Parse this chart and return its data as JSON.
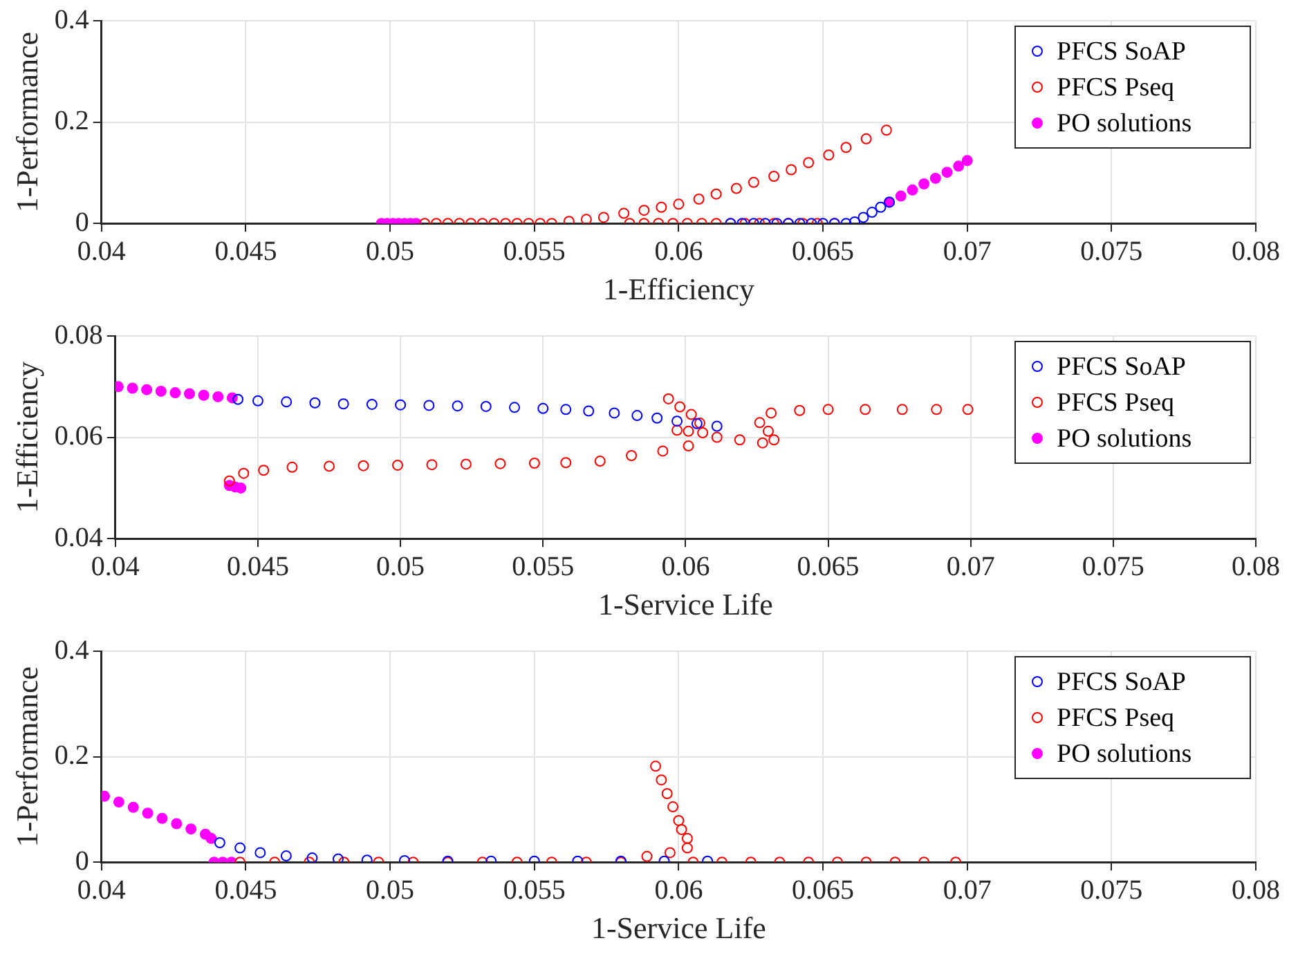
{
  "chart_data": [
    {
      "type": "scatter",
      "xlabel": "1-Efficiency",
      "ylabel": "1-Performance",
      "xlim": [
        0.04,
        0.08
      ],
      "xticks": [
        0.04,
        0.045,
        0.05,
        0.055,
        0.06,
        0.065,
        0.07,
        0.075,
        0.08
      ],
      "ylim": [
        0,
        0.4
      ],
      "yticks": [
        0,
        0.2,
        0.4
      ],
      "grid": true,
      "legend": "top right",
      "marker": "circle",
      "series": [
        {
          "name": "PFCS SoAP",
          "color": "#0000ff",
          "x": [
            0.0618,
            0.0622,
            0.0626,
            0.063,
            0.0634,
            0.0638,
            0.0642,
            0.0646,
            0.065,
            0.0654,
            0.0658,
            0.0661,
            0.0664,
            0.0667,
            0.067,
            0.0673
          ],
          "values": [
            0,
            0,
            0,
            0,
            0,
            0,
            0,
            0,
            0,
            0,
            0,
            0.003,
            0.012,
            0.022,
            0.032,
            0.042
          ]
        },
        {
          "name": "PFCS Pseq",
          "color": "#ff0000",
          "x": [
            0.0512,
            0.0516,
            0.052,
            0.0524,
            0.0528,
            0.0532,
            0.0536,
            0.054,
            0.0544,
            0.0548,
            0.0552,
            0.0556,
            0.0562,
            0.0568,
            0.0574,
            0.0581,
            0.0588,
            0.0594,
            0.06,
            0.0607,
            0.0613,
            0.062,
            0.0626,
            0.0633,
            0.0639,
            0.0645,
            0.0652,
            0.0658,
            0.0665,
            0.0672,
            0.0583,
            0.0588,
            0.0593,
            0.0598,
            0.0603,
            0.0608,
            0.0613,
            0.0618,
            0.0623,
            0.0628,
            0.0633,
            0.0638,
            0.0643,
            0.0648,
            0.0654
          ],
          "values": [
            0,
            0,
            0,
            0,
            0,
            0,
            0,
            0,
            0,
            0,
            0,
            0,
            0.004,
            0.008,
            0.012,
            0.02,
            0.026,
            0.032,
            0.038,
            0.048,
            0.058,
            0.069,
            0.081,
            0.093,
            0.106,
            0.12,
            0.135,
            0.15,
            0.167,
            0.184,
            0,
            0,
            0,
            0,
            0,
            0,
            0,
            0,
            0,
            0,
            0,
            0,
            0,
            0,
            0
          ]
        },
        {
          "name": "PO solutions",
          "color": "#ff00ff",
          "x": [
            0.0497,
            0.0499,
            0.0501,
            0.0503,
            0.0505,
            0.0507,
            0.0509,
            0.0673,
            0.0677,
            0.0681,
            0.0685,
            0.0689,
            0.0693,
            0.0697,
            0.07
          ],
          "values": [
            0,
            0,
            0,
            0,
            0,
            0,
            0,
            0.042,
            0.054,
            0.066,
            0.078,
            0.089,
            0.101,
            0.113,
            0.124
          ]
        }
      ]
    },
    {
      "type": "scatter",
      "xlabel": "1-Service Life",
      "ylabel": "1-Efficiency",
      "xlim": [
        0.04,
        0.08
      ],
      "xticks": [
        0.04,
        0.045,
        0.05,
        0.055,
        0.06,
        0.065,
        0.07,
        0.075,
        0.08
      ],
      "ylim": [
        0.04,
        0.08
      ],
      "yticks": [
        0.04,
        0.06,
        0.08
      ],
      "grid": true,
      "legend": "top right",
      "marker": "circle",
      "series": [
        {
          "name": "PFCS SoAP",
          "color": "#0000ff",
          "x": [
            0.0443,
            0.045,
            0.046,
            0.047,
            0.048,
            0.049,
            0.05,
            0.051,
            0.052,
            0.053,
            0.054,
            0.055,
            0.0558,
            0.0566,
            0.0575,
            0.0583,
            0.059,
            0.0597,
            0.0604,
            0.0611
          ],
          "values": [
            0.0675,
            0.0672,
            0.067,
            0.0668,
            0.0666,
            0.0665,
            0.0664,
            0.0663,
            0.0662,
            0.0661,
            0.0659,
            0.0657,
            0.0655,
            0.0652,
            0.0648,
            0.0643,
            0.0638,
            0.0632,
            0.0627,
            0.0622
          ]
        },
        {
          "name": "PFCS Pseq",
          "color": "#ff0000",
          "x": [
            0.044,
            0.0445,
            0.0452,
            0.0462,
            0.0475,
            0.0487,
            0.0499,
            0.0511,
            0.0523,
            0.0535,
            0.0547,
            0.0558,
            0.057,
            0.0581,
            0.0592,
            0.0601,
            0.0606,
            0.0594,
            0.0598,
            0.0602,
            0.0605,
            0.0597,
            0.0601,
            0.0611,
            0.0619,
            0.0627,
            0.0631,
            0.0629,
            0.0626,
            0.063,
            0.064,
            0.065,
            0.0663,
            0.0676,
            0.0688,
            0.0699
          ],
          "values": [
            0.0514,
            0.0529,
            0.0535,
            0.0541,
            0.0543,
            0.0544,
            0.0545,
            0.0546,
            0.0547,
            0.0548,
            0.0549,
            0.055,
            0.0553,
            0.0564,
            0.0573,
            0.0583,
            0.0609,
            0.0676,
            0.066,
            0.0645,
            0.0628,
            0.0614,
            0.0612,
            0.06,
            0.0595,
            0.0589,
            0.0595,
            0.0612,
            0.0629,
            0.0648,
            0.0653,
            0.0655,
            0.0655,
            0.0655,
            0.0655,
            0.0655
          ]
        },
        {
          "name": "PO solutions",
          "color": "#ff00ff",
          "x": [
            0.0401,
            0.0406,
            0.0411,
            0.0416,
            0.0421,
            0.0426,
            0.0431,
            0.0436,
            0.0441,
            0.044,
            0.0442,
            0.0444
          ],
          "values": [
            0.07,
            0.0697,
            0.0694,
            0.0691,
            0.0688,
            0.0686,
            0.0683,
            0.068,
            0.0678,
            0.0505,
            0.0502,
            0.05
          ]
        }
      ]
    },
    {
      "type": "scatter",
      "xlabel": "1-Service Life",
      "ylabel": "1-Performance",
      "xlim": [
        0.04,
        0.08
      ],
      "xticks": [
        0.04,
        0.045,
        0.05,
        0.055,
        0.06,
        0.065,
        0.07,
        0.075,
        0.08
      ],
      "ylim": [
        0,
        0.4
      ],
      "yticks": [
        0,
        0.2,
        0.4
      ],
      "grid": true,
      "legend": "top right",
      "marker": "circle",
      "series": [
        {
          "name": "PFCS SoAP",
          "color": "#0000ff",
          "x": [
            0.0441,
            0.0448,
            0.0455,
            0.0464,
            0.0473,
            0.0482,
            0.0492,
            0.0505,
            0.052,
            0.0535,
            0.055,
            0.0565,
            0.058,
            0.0595,
            0.061
          ],
          "values": [
            0.037,
            0.027,
            0.018,
            0.012,
            0.008,
            0.006,
            0.004,
            0.003,
            0.002,
            0.002,
            0.002,
            0.002,
            0.002,
            0.002,
            0.002
          ]
        },
        {
          "name": "PFCS Pseq",
          "color": "#ff0000",
          "x": [
            0.0448,
            0.046,
            0.0472,
            0.0484,
            0.0496,
            0.0508,
            0.052,
            0.0532,
            0.0544,
            0.0556,
            0.0568,
            0.058,
            0.0589,
            0.0597,
            0.0603,
            0.0603,
            0.0601,
            0.06,
            0.0598,
            0.0596,
            0.0594,
            0.0592,
            0.0605,
            0.0615,
            0.0625,
            0.0635,
            0.0645,
            0.0655,
            0.0665,
            0.0675,
            0.0685,
            0.0696
          ],
          "values": [
            0,
            0,
            0,
            0,
            0,
            0,
            0,
            0,
            0,
            0,
            0,
            0,
            0.011,
            0.018,
            0.027,
            0.045,
            0.062,
            0.079,
            0.105,
            0.13,
            0.156,
            0.182,
            0,
            0,
            0,
            0,
            0,
            0,
            0,
            0,
            0,
            0
          ]
        },
        {
          "name": "PO solutions",
          "color": "#ff00ff",
          "x": [
            0.0401,
            0.0406,
            0.0411,
            0.0416,
            0.0421,
            0.0426,
            0.0431,
            0.0436,
            0.0438,
            0.0439,
            0.0442,
            0.0445
          ],
          "values": [
            0.125,
            0.114,
            0.104,
            0.093,
            0.083,
            0.073,
            0.063,
            0.053,
            0.045,
            0,
            0,
            0
          ]
        }
      ]
    }
  ]
}
